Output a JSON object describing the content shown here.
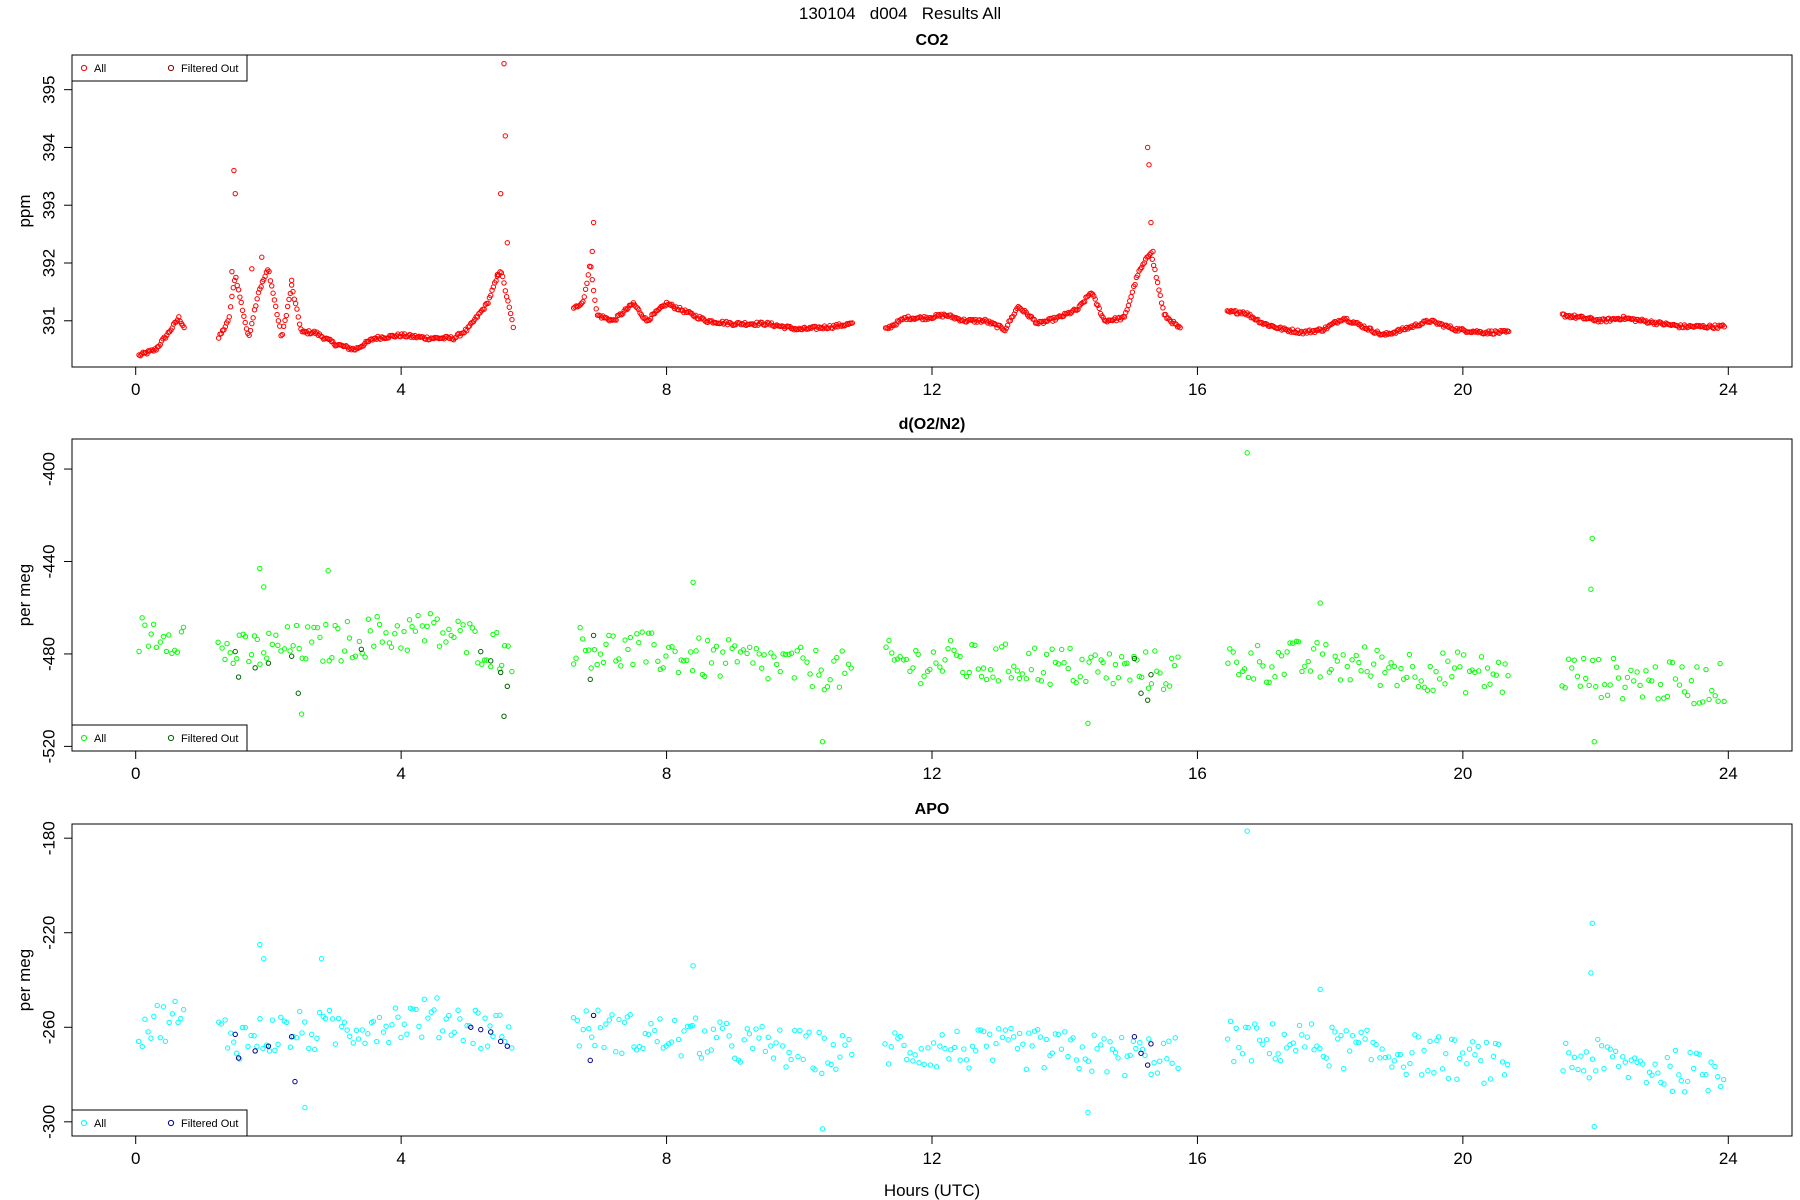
{
  "figure_title": "130104   d004   Results All",
  "xlabel": "Hours (UTC)",
  "chart_data": [
    {
      "type": "scatter",
      "title": "CO2",
      "ylabel": "ppm",
      "xlim": [
        -0.96,
        24.96
      ],
      "ylim": [
        390.2,
        395.6
      ],
      "xticks": [
        0,
        4,
        8,
        12,
        16,
        20,
        24
      ],
      "yticks": [
        391,
        392,
        393,
        394,
        395
      ],
      "grid": false,
      "legend_position": "top-left",
      "legend": [
        {
          "label": "All",
          "color": "#ff0000"
        },
        {
          "label": "Filtered Out",
          "color": "#8b0000"
        }
      ],
      "series": [
        {
          "name": "All",
          "color": "#ff0000",
          "segments": [
            {
              "x": [
                0.05,
                0.3,
                0.5,
                0.65,
                0.75
              ],
              "y": [
                390.4,
                390.5,
                390.8,
                391.05,
                390.85
              ]
            },
            {
              "x": [
                1.25,
                1.4,
                1.5,
                1.7,
                1.85,
                2.0,
                2.2,
                2.35,
                2.5,
                2.7,
                3.0,
                3.3,
                3.6,
                4.0,
                4.4,
                4.8,
                5.0,
                5.3,
                5.5,
                5.7
              ],
              "y": [
                390.7,
                391.0,
                391.8,
                390.7,
                391.5,
                391.9,
                390.7,
                391.6,
                390.8,
                390.8,
                390.6,
                390.5,
                390.7,
                390.75,
                390.7,
                390.7,
                390.85,
                391.3,
                391.9,
                390.85
              ]
            },
            {
              "x": [
                6.6,
                6.75,
                6.85,
                6.95,
                7.2,
                7.5,
                7.7,
                8.0,
                8.3,
                8.6,
                9.0,
                9.5,
                10.0,
                10.5,
                10.8
              ],
              "y": [
                391.2,
                391.35,
                392.0,
                391.1,
                391.0,
                391.3,
                391.0,
                391.3,
                391.15,
                391.0,
                390.95,
                390.95,
                390.85,
                390.9,
                390.95
              ]
            },
            {
              "x": [
                11.3,
                11.6,
                11.9,
                12.2,
                12.5,
                12.8,
                13.1,
                13.3,
                13.6,
                13.9,
                14.2,
                14.4,
                14.6,
                14.9,
                15.1,
                15.3,
                15.5,
                15.75
              ],
              "y": [
                390.85,
                391.05,
                391.05,
                391.1,
                391.0,
                391.0,
                390.85,
                391.25,
                390.95,
                391.05,
                391.2,
                391.5,
                391.0,
                391.05,
                391.8,
                392.2,
                391.1,
                390.85
              ]
            },
            {
              "x": [
                16.45,
                16.7,
                17.0,
                17.3,
                17.6,
                17.9,
                18.2,
                18.5,
                18.8,
                19.1,
                19.5,
                19.9,
                20.3,
                20.7
              ],
              "y": [
                391.15,
                391.15,
                390.95,
                390.85,
                390.8,
                390.85,
                391.05,
                390.9,
                390.75,
                390.85,
                391.0,
                390.85,
                390.8,
                390.8
              ]
            },
            {
              "x": [
                21.5,
                21.8,
                22.1,
                22.4,
                22.7,
                23.0,
                23.3,
                23.6,
                23.95
              ],
              "y": [
                391.1,
                391.05,
                391.0,
                391.05,
                391.0,
                390.95,
                390.9,
                390.9,
                390.9
              ]
            }
          ]
        }
      ],
      "highlights": [
        {
          "x": 1.48,
          "y": 393.6
        },
        {
          "x": 1.5,
          "y": 393.2
        },
        {
          "x": 1.45,
          "y": 391.85
        },
        {
          "x": 1.9,
          "y": 392.1
        },
        {
          "x": 1.75,
          "y": 391.9
        },
        {
          "x": 2.35,
          "y": 391.7
        },
        {
          "x": 5.55,
          "y": 395.45
        },
        {
          "x": 5.57,
          "y": 394.2
        },
        {
          "x": 5.5,
          "y": 393.2
        },
        {
          "x": 5.6,
          "y": 392.35
        },
        {
          "x": 5.45,
          "y": 391.8
        },
        {
          "x": 6.9,
          "y": 392.7
        },
        {
          "x": 6.88,
          "y": 392.2
        },
        {
          "x": 15.25,
          "y": 394.0
        },
        {
          "x": 15.27,
          "y": 393.7
        },
        {
          "x": 15.3,
          "y": 392.7
        },
        {
          "x": 15.33,
          "y": 392.2
        }
      ]
    },
    {
      "type": "scatter",
      "title": "d(O2/N2)",
      "ylabel": "per meg",
      "xlim": [
        -0.96,
        24.96
      ],
      "ylim": [
        -522,
        -387
      ],
      "xticks": [
        0,
        4,
        8,
        12,
        16,
        20,
        24
      ],
      "yticks": [
        -520,
        -480,
        -440,
        -400
      ],
      "grid": false,
      "legend_position": "bottom-left",
      "legend": [
        {
          "label": "All",
          "color": "#00ff00"
        },
        {
          "label": "Filtered Out",
          "color": "#006400"
        }
      ],
      "series": [
        {
          "name": "All",
          "color": "#00ff00",
          "segments": [
            {
              "x": [
                0.05,
                0.3,
                0.6,
                0.75
              ],
              "y": [
                -472,
                -470,
                -471,
                -473
              ]
            },
            {
              "x": [
                1.25,
                1.6,
                2.0,
                2.4,
                2.8,
                3.2,
                3.6,
                4.0,
                4.4,
                4.8,
                5.2,
                5.7
              ],
              "y": [
                -478,
                -480,
                -478,
                -476,
                -476,
                -474,
                -472,
                -471,
                -470,
                -472,
                -476,
                -480
              ]
            },
            {
              "x": [
                6.6,
                7.0,
                7.5,
                8.0,
                8.5,
                9.0,
                9.5,
                10.0,
                10.5,
                10.8
              ],
              "y": [
                -476,
                -478,
                -479,
                -480,
                -482,
                -483,
                -484,
                -486,
                -487,
                -488
              ]
            },
            {
              "x": [
                11.3,
                11.8,
                12.3,
                12.8,
                13.3,
                13.8,
                14.3,
                14.8,
                15.3,
                15.75
              ],
              "y": [
                -483,
                -484,
                -483,
                -485,
                -484,
                -485,
                -486,
                -487,
                -487,
                -488
              ]
            },
            {
              "x": [
                16.45,
                17.0,
                17.5,
                18.0,
                18.5,
                19.0,
                19.5,
                20.0,
                20.4,
                20.7
              ],
              "y": [
                -483,
                -484,
                -483,
                -484,
                -485,
                -486,
                -487,
                -488,
                -489,
                -490
              ]
            },
            {
              "x": [
                21.5,
                22.0,
                22.5,
                23.0,
                23.5,
                23.95
              ],
              "y": [
                -488,
                -490,
                -491,
                -492,
                -493,
                -493
              ]
            }
          ],
          "scatter_spread": 9
        }
      ],
      "outliers": [
        {
          "x": 16.75,
          "y": -393
        },
        {
          "x": 21.95,
          "y": -430
        },
        {
          "x": 21.93,
          "y": -452
        },
        {
          "x": 21.98,
          "y": -518
        },
        {
          "x": 1.87,
          "y": -443
        },
        {
          "x": 1.93,
          "y": -451
        },
        {
          "x": 2.9,
          "y": -444
        },
        {
          "x": 8.4,
          "y": -449
        },
        {
          "x": 2.5,
          "y": -506
        },
        {
          "x": 10.35,
          "y": -518
        },
        {
          "x": 14.35,
          "y": -510
        },
        {
          "x": 17.85,
          "y": -458
        }
      ],
      "filtered": [
        {
          "x": 1.5,
          "y": -479
        },
        {
          "x": 1.55,
          "y": -490
        },
        {
          "x": 1.8,
          "y": -486
        },
        {
          "x": 2.0,
          "y": -484
        },
        {
          "x": 2.35,
          "y": -481
        },
        {
          "x": 2.45,
          "y": -497
        },
        {
          "x": 3.4,
          "y": -478
        },
        {
          "x": 5.2,
          "y": -479
        },
        {
          "x": 5.35,
          "y": -483
        },
        {
          "x": 5.5,
          "y": -488
        },
        {
          "x": 5.6,
          "y": -494
        },
        {
          "x": 5.55,
          "y": -507
        },
        {
          "x": 6.9,
          "y": -472
        },
        {
          "x": 6.85,
          "y": -491
        },
        {
          "x": 15.05,
          "y": -482
        },
        {
          "x": 15.15,
          "y": -497
        },
        {
          "x": 15.3,
          "y": -489
        },
        {
          "x": 15.25,
          "y": -500
        }
      ]
    },
    {
      "type": "scatter",
      "title": "APO",
      "ylabel": "per meg",
      "xlim": [
        -0.96,
        24.96
      ],
      "ylim": [
        -306,
        -174
      ],
      "xticks": [
        0,
        4,
        8,
        12,
        16,
        20,
        24
      ],
      "yticks": [
        -300,
        -260,
        -220,
        -180
      ],
      "grid": false,
      "legend_position": "bottom-left",
      "legend": [
        {
          "label": "All",
          "color": "#00ffff"
        },
        {
          "label": "Filtered Out",
          "color": "#00008b"
        }
      ],
      "series": [
        {
          "name": "All",
          "color": "#00ffff",
          "segments": [
            {
              "x": [
                0.05,
                0.3,
                0.6,
                0.75
              ],
              "y": [
                -260,
                -258,
                -256,
                -258
              ]
            },
            {
              "x": [
                1.25,
                1.6,
                2.0,
                2.4,
                2.8,
                3.2,
                3.6,
                4.0,
                4.4,
                4.8,
                5.2,
                5.7
              ],
              "y": [
                -262,
                -265,
                -263,
                -262,
                -262,
                -260,
                -258,
                -257,
                -256,
                -257,
                -260,
                -262
              ]
            },
            {
              "x": [
                6.6,
                7.0,
                7.5,
                8.0,
                8.5,
                9.0,
                9.5,
                10.0,
                10.5,
                10.8
              ],
              "y": [
                -260,
                -261,
                -263,
                -264,
                -265,
                -267,
                -268,
                -270,
                -271,
                -272
              ]
            },
            {
              "x": [
                11.3,
                11.8,
                12.3,
                12.8,
                13.3,
                13.8,
                14.3,
                14.8,
                15.3,
                15.75
              ],
              "y": [
                -268,
                -269,
                -269,
                -270,
                -269,
                -270,
                -271,
                -272,
                -272,
                -273
              ]
            },
            {
              "x": [
                16.45,
                17.0,
                17.5,
                18.0,
                18.5,
                19.0,
                19.5,
                20.0,
                20.4,
                20.7
              ],
              "y": [
                -266,
                -267,
                -266,
                -268,
                -270,
                -271,
                -272,
                -274,
                -275,
                -276
              ]
            },
            {
              "x": [
                21.5,
                22.0,
                22.5,
                23.0,
                23.5,
                23.95
              ],
              "y": [
                -273,
                -274,
                -276,
                -278,
                -279,
                -279
              ]
            }
          ],
          "scatter_spread": 9
        }
      ],
      "outliers": [
        {
          "x": 16.75,
          "y": -177
        },
        {
          "x": 21.95,
          "y": -216
        },
        {
          "x": 21.93,
          "y": -237
        },
        {
          "x": 21.98,
          "y": -302
        },
        {
          "x": 1.87,
          "y": -225
        },
        {
          "x": 1.93,
          "y": -231
        },
        {
          "x": 2.8,
          "y": -231
        },
        {
          "x": 8.4,
          "y": -234
        },
        {
          "x": 2.55,
          "y": -294
        },
        {
          "x": 10.35,
          "y": -303
        },
        {
          "x": 14.35,
          "y": -296
        },
        {
          "x": 17.85,
          "y": -244
        }
      ],
      "filtered": [
        {
          "x": 1.5,
          "y": -263
        },
        {
          "x": 1.55,
          "y": -273
        },
        {
          "x": 1.8,
          "y": -270
        },
        {
          "x": 2.0,
          "y": -268
        },
        {
          "x": 2.35,
          "y": -264
        },
        {
          "x": 2.4,
          "y": -283
        },
        {
          "x": 5.05,
          "y": -260
        },
        {
          "x": 5.2,
          "y": -261
        },
        {
          "x": 5.35,
          "y": -262
        },
        {
          "x": 5.5,
          "y": -266
        },
        {
          "x": 5.6,
          "y": -268
        },
        {
          "x": 6.9,
          "y": -255
        },
        {
          "x": 6.85,
          "y": -274
        },
        {
          "x": 15.05,
          "y": -264
        },
        {
          "x": 15.15,
          "y": -271
        },
        {
          "x": 15.3,
          "y": -267
        },
        {
          "x": 15.25,
          "y": -276
        }
      ]
    }
  ]
}
